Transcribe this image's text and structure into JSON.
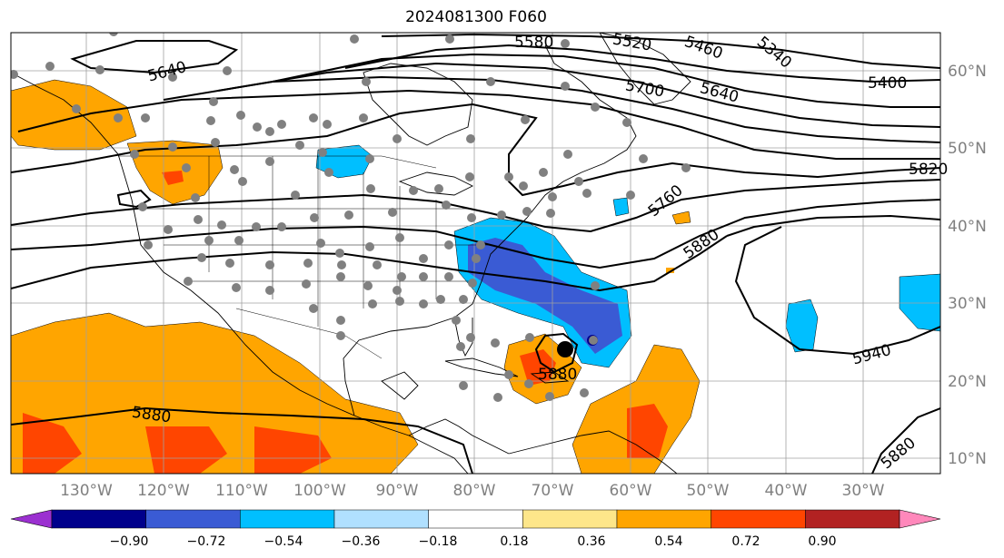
{
  "title": "2024081300 F060",
  "map": {
    "lon_ticks": [
      "130°W",
      "120°W",
      "110°W",
      "100°W",
      "90°W",
      "80°W",
      "70°W",
      "60°W",
      "50°W",
      "40°W",
      "30°W"
    ],
    "lat_ticks": [
      "60°N",
      "50°N",
      "40°N",
      "30°N",
      "20°N",
      "10°N"
    ],
    "contour_labels": [
      "5640",
      "5580",
      "5520",
      "5460",
      "5340",
      "5400",
      "5700",
      "5640",
      "5820",
      "5760",
      "5880",
      "5940",
      "5880",
      "5880",
      "5880"
    ]
  },
  "colorbar": {
    "ticks": [
      "−0.90",
      "−0.72",
      "−0.54",
      "−0.36",
      "−0.18",
      "0.18",
      "0.36",
      "0.54",
      "0.72",
      "0.90"
    ],
    "colors": [
      "#9b30d0",
      "#00008b",
      "#3a5bd4",
      "#00bfff",
      "#b0e0ff",
      "#ffffff",
      "#fde68a",
      "#ffa500",
      "#ff4500",
      "#b22222",
      "#ff88bb"
    ]
  }
}
